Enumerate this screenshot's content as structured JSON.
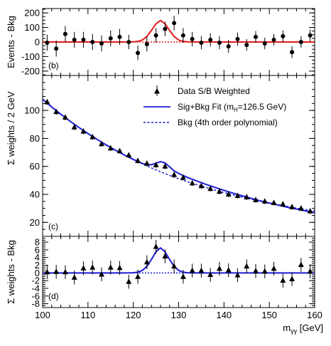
{
  "chart_data": [
    {
      "type": "scatter",
      "panel_label": "(b)",
      "ylabel": "Events - Bkg",
      "xlim": [
        100,
        160
      ],
      "ylim": [
        -230,
        230
      ],
      "yticks": [
        -200,
        -100,
        0,
        100,
        200
      ],
      "points": {
        "x": [
          101,
          103,
          105,
          107,
          109,
          111,
          113,
          115,
          117,
          119,
          121,
          123,
          125,
          127,
          129,
          131,
          133,
          135,
          137,
          139,
          141,
          143,
          145,
          147,
          149,
          151,
          153,
          155,
          157,
          159
        ],
        "y": [
          -5,
          -45,
          55,
          15,
          15,
          0,
          -10,
          25,
          35,
          0,
          -75,
          -15,
          45,
          90,
          130,
          45,
          20,
          -5,
          15,
          -5,
          -30,
          20,
          -20,
          35,
          -10,
          15,
          40,
          -70,
          0,
          45
        ],
        "err": [
          55,
          55,
          55,
          55,
          55,
          55,
          55,
          55,
          55,
          50,
          50,
          50,
          50,
          50,
          50,
          50,
          50,
          45,
          45,
          45,
          45,
          45,
          40,
          40,
          40,
          40,
          40,
          40,
          40,
          40
        ]
      },
      "curves": [
        {
          "name": "signal",
          "style": "solid",
          "color": "#e31a1c",
          "x": [
            100,
            118,
            120,
            121,
            122,
            123,
            124,
            125,
            126,
            127,
            128,
            129,
            130,
            131,
            132,
            134,
            160
          ],
          "y": [
            0,
            0,
            1,
            4,
            14,
            38,
            80,
            125,
            148,
            125,
            80,
            38,
            14,
            4,
            1,
            0,
            0
          ]
        },
        {
          "name": "background",
          "style": "dotted",
          "color": "#e31a1c",
          "x": [
            100,
            160
          ],
          "y": [
            0,
            0
          ]
        }
      ],
      "colors": {
        "signal": "#e31a1c"
      }
    },
    {
      "type": "scatter",
      "panel_label": "(c)",
      "ylabel": "Σ weights / 2 GeV",
      "xlim": [
        100,
        160
      ],
      "ylim": [
        10,
        125
      ],
      "yticks": [
        20,
        40,
        60,
        80,
        100
      ],
      "legend": {
        "placement": "top-right",
        "entries": [
          {
            "label": "Data S/B Weighted",
            "marker": "triangle"
          },
          {
            "label": "Sig+Bkg Fit  (m",
            "sub": "H",
            "suffix": "=126.5 GeV)",
            "style": "solid"
          },
          {
            "label": "Bkg (4th order polynomial)",
            "style": "dashed"
          }
        ]
      },
      "points": {
        "x": [
          101,
          103,
          105,
          107,
          109,
          111,
          113,
          115,
          117,
          119,
          121,
          123,
          125,
          127,
          129,
          131,
          133,
          135,
          137,
          139,
          141,
          143,
          145,
          147,
          149,
          151,
          153,
          155,
          157,
          159
        ],
        "y": [
          106,
          99,
          95,
          88,
          85,
          81,
          76,
          73,
          71,
          68,
          64,
          62,
          61,
          60,
          54,
          52,
          48,
          46,
          44,
          42,
          40,
          39,
          38,
          36,
          35,
          34,
          33,
          31,
          30,
          28
        ],
        "err": [
          2,
          2,
          2,
          2,
          2,
          2,
          2,
          2,
          2,
          2,
          2,
          2,
          2,
          2,
          2,
          2,
          2,
          2,
          2,
          2,
          2,
          2,
          2,
          2,
          2,
          2,
          2,
          2,
          2,
          2
        ]
      },
      "curves": [
        {
          "name": "Sig+Bkg Fit",
          "style": "solid",
          "color": "#1d1dd6",
          "x": [
            100,
            102,
            104,
            106,
            108,
            110,
            112,
            114,
            116,
            118,
            120,
            122,
            123,
            124,
            125,
            126,
            127,
            128,
            129,
            130,
            132,
            134,
            136,
            138,
            140,
            142,
            144,
            146,
            148,
            150,
            152,
            154,
            156,
            158,
            160
          ],
          "y": [
            108,
            102.5,
            97.3,
            92.4,
            87.8,
            83.5,
            79.3,
            75.4,
            71.7,
            68.2,
            65,
            62.1,
            61.2,
            61.2,
            62.3,
            63.4,
            62.5,
            59.7,
            56.8,
            55,
            52,
            49.6,
            47.2,
            45,
            42.9,
            40.9,
            39,
            37.2,
            35.4,
            33.8,
            32.3,
            30.8,
            29.5,
            28.2,
            27
          ]
        },
        {
          "name": "Bkg (4th order polynomial)",
          "style": "dashed",
          "color": "#1d1dd6",
          "x": [
            100,
            102,
            104,
            106,
            108,
            110,
            112,
            114,
            116,
            118,
            120,
            122,
            124,
            126,
            128,
            130,
            132,
            134,
            136,
            138,
            140,
            142,
            144,
            146,
            148,
            150,
            152,
            154,
            156,
            158,
            160
          ],
          "y": [
            108,
            102.5,
            97.3,
            92.4,
            87.8,
            83.5,
            79.3,
            75.4,
            71.7,
            68.2,
            65,
            61.8,
            58.9,
            56.2,
            53.6,
            51.2,
            49,
            47,
            45,
            43.1,
            41.3,
            39.7,
            38.1,
            36.6,
            35.2,
            33.9,
            32.6,
            31.4,
            30.2,
            29.1,
            28
          ]
        }
      ],
      "colors": {
        "fit": "#1d1dd6"
      }
    },
    {
      "type": "scatter",
      "panel_label": "(d)",
      "ylabel": "Σ weights - Bkg",
      "xlabel": "m",
      "xlabel_sub": "γγ",
      "xlabel_suffix": " [GeV]",
      "xlim": [
        100,
        160
      ],
      "ylim": [
        -9,
        9.5
      ],
      "yticks": [
        -8,
        -6,
        -4,
        -2,
        0,
        2,
        4,
        6,
        8
      ],
      "xticks": [
        100,
        110,
        120,
        130,
        140,
        150,
        160
      ],
      "points": {
        "x": [
          101,
          103,
          105,
          107,
          109,
          111,
          113,
          115,
          117,
          119,
          121,
          123,
          125,
          127,
          129,
          131,
          133,
          135,
          137,
          139,
          141,
          143,
          145,
          147,
          149,
          151,
          153,
          155,
          157,
          159
        ],
        "y": [
          0.2,
          0.3,
          0.2,
          -1.2,
          1.2,
          1.4,
          -0.4,
          1.4,
          1.3,
          -2.3,
          -1,
          2.8,
          6.8,
          4.3,
          1.7,
          -1,
          0.6,
          0.6,
          -0.5,
          1.1,
          0.7,
          -0.6,
          1.7,
          0.5,
          0.4,
          1.1,
          -2,
          -1.6,
          2.1,
          0.4
        ],
        "err": [
          1.8,
          1.8,
          1.8,
          1.8,
          1.8,
          1.8,
          1.8,
          1.8,
          1.8,
          1.8,
          1.8,
          1.8,
          1.8,
          1.8,
          1.8,
          1.8,
          1.8,
          1.8,
          1.8,
          1.8,
          1.8,
          1.8,
          1.8,
          1.8,
          1.8,
          1.8,
          1.8,
          1.8,
          1.8,
          1.8
        ]
      },
      "curves": [
        {
          "name": "signal",
          "style": "solid",
          "color": "#1d1dd6",
          "x": [
            100,
            118,
            120,
            121,
            122,
            123,
            124,
            125,
            126,
            127,
            128,
            129,
            130,
            131,
            132,
            134,
            160
          ],
          "y": [
            0,
            0,
            0.05,
            0.2,
            0.65,
            1.7,
            3.5,
            5.5,
            6.5,
            5.5,
            3.5,
            1.7,
            0.65,
            0.2,
            0.05,
            0,
            0
          ]
        },
        {
          "name": "background",
          "style": "dotted",
          "color": "#1d1dd6",
          "x": [
            100,
            160
          ],
          "y": [
            0,
            0
          ]
        }
      ],
      "colors": {
        "signal": "#1d1dd6"
      }
    }
  ]
}
